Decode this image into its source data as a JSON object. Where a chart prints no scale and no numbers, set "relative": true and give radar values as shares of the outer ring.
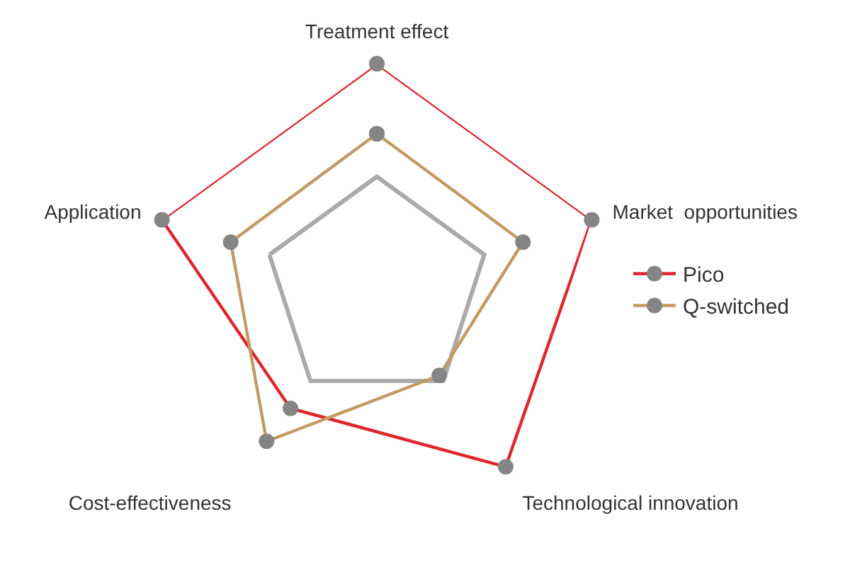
{
  "chart_data": {
    "type": "radar",
    "relative": true,
    "categories": [
      "Treatment effect",
      "Market  opportunities",
      "Technological innovation",
      "Cost-effectiveness",
      "Application"
    ],
    "series": [
      {
        "name": "Pico",
        "color": "#e0262b",
        "values": [
          1.0,
          1.0,
          0.97,
          0.65,
          1.0
        ]
      },
      {
        "name": "Q-switched",
        "color": "#c49a62",
        "values": [
          0.69,
          0.68,
          0.47,
          0.83,
          0.68
        ]
      }
    ],
    "marker": "circle",
    "grid": true,
    "legend": "right"
  }
}
